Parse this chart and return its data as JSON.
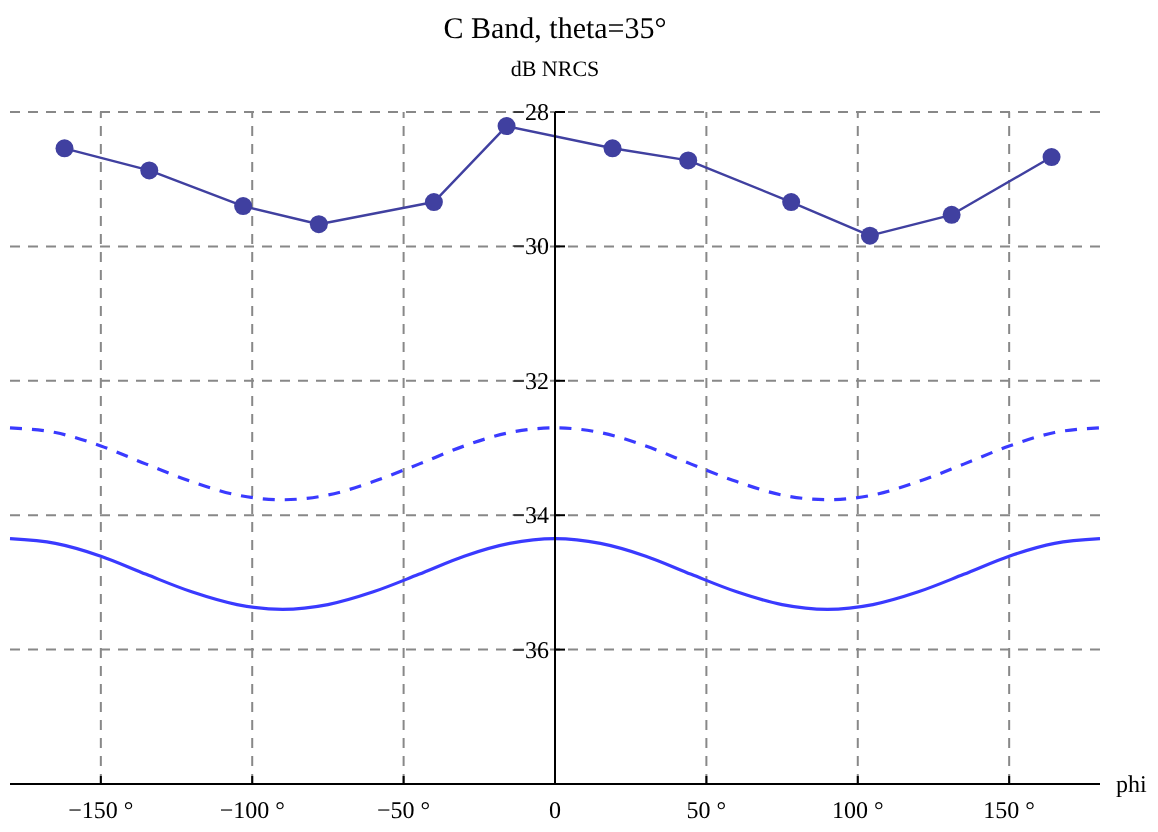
{
  "chart_data": {
    "type": "line",
    "title": "C Band, theta=35°",
    "xlabel": "phi",
    "ylabel": "dB NRCS",
    "xlim": [
      -180,
      180
    ],
    "ylim": [
      -38,
      -28
    ],
    "xticks": [
      {
        "value": -150,
        "label": "−150 °"
      },
      {
        "value": -100,
        "label": "−100 °"
      },
      {
        "value": -50,
        "label": "−50 °"
      },
      {
        "value": 0,
        "label": "0"
      },
      {
        "value": 50,
        "label": "50 °"
      },
      {
        "value": 100,
        "label": "100 °"
      },
      {
        "value": 150,
        "label": "150 °"
      }
    ],
    "yticks": [
      -28,
      -30,
      -32,
      -34,
      -36
    ],
    "grid": true,
    "series": [
      {
        "color": "#4040a0",
        "marker": "circle",
        "line_style": "solid",
        "x": [
          -162,
          -134,
          -103,
          -78,
          -40,
          -16,
          19,
          44,
          78,
          104,
          131,
          164
        ],
        "values": [
          -28.54,
          -28.87,
          -29.4,
          -29.67,
          -29.34,
          -28.21,
          -28.54,
          -28.72,
          -29.34,
          -29.84,
          -29.53,
          -28.67
        ]
      },
      {
        "color": "#3a3aff",
        "marker": "none",
        "line_style": "dashed",
        "x": [
          -180,
          -165,
          -150,
          -135,
          -120,
          -105,
          -90,
          -75,
          -60,
          -45,
          -30,
          -15,
          0,
          15,
          30,
          45,
          60,
          75,
          90,
          105,
          120,
          135,
          150,
          165,
          180
        ],
        "values": [
          -32.7,
          -32.77,
          -32.97,
          -33.24,
          -33.5,
          -33.7,
          -33.77,
          -33.7,
          -33.5,
          -33.24,
          -32.97,
          -32.77,
          -32.7,
          -32.77,
          -32.97,
          -33.24,
          -33.5,
          -33.7,
          -33.77,
          -33.7,
          -33.5,
          -33.24,
          -32.97,
          -32.77,
          -32.7
        ]
      },
      {
        "color": "#3a3aff",
        "marker": "none",
        "line_style": "solid",
        "x": [
          -180,
          -165,
          -150,
          -135,
          -120,
          -105,
          -90,
          -75,
          -60,
          -45,
          -30,
          -15,
          0,
          15,
          30,
          45,
          60,
          75,
          90,
          105,
          120,
          135,
          150,
          165,
          180
        ],
        "values": [
          -34.35,
          -34.42,
          -34.61,
          -34.88,
          -35.14,
          -35.33,
          -35.4,
          -35.33,
          -35.14,
          -34.88,
          -34.61,
          -34.42,
          -34.35,
          -34.42,
          -34.61,
          -34.88,
          -35.14,
          -35.33,
          -35.4,
          -35.33,
          -35.14,
          -34.88,
          -34.61,
          -34.42,
          -34.35
        ]
      }
    ]
  }
}
